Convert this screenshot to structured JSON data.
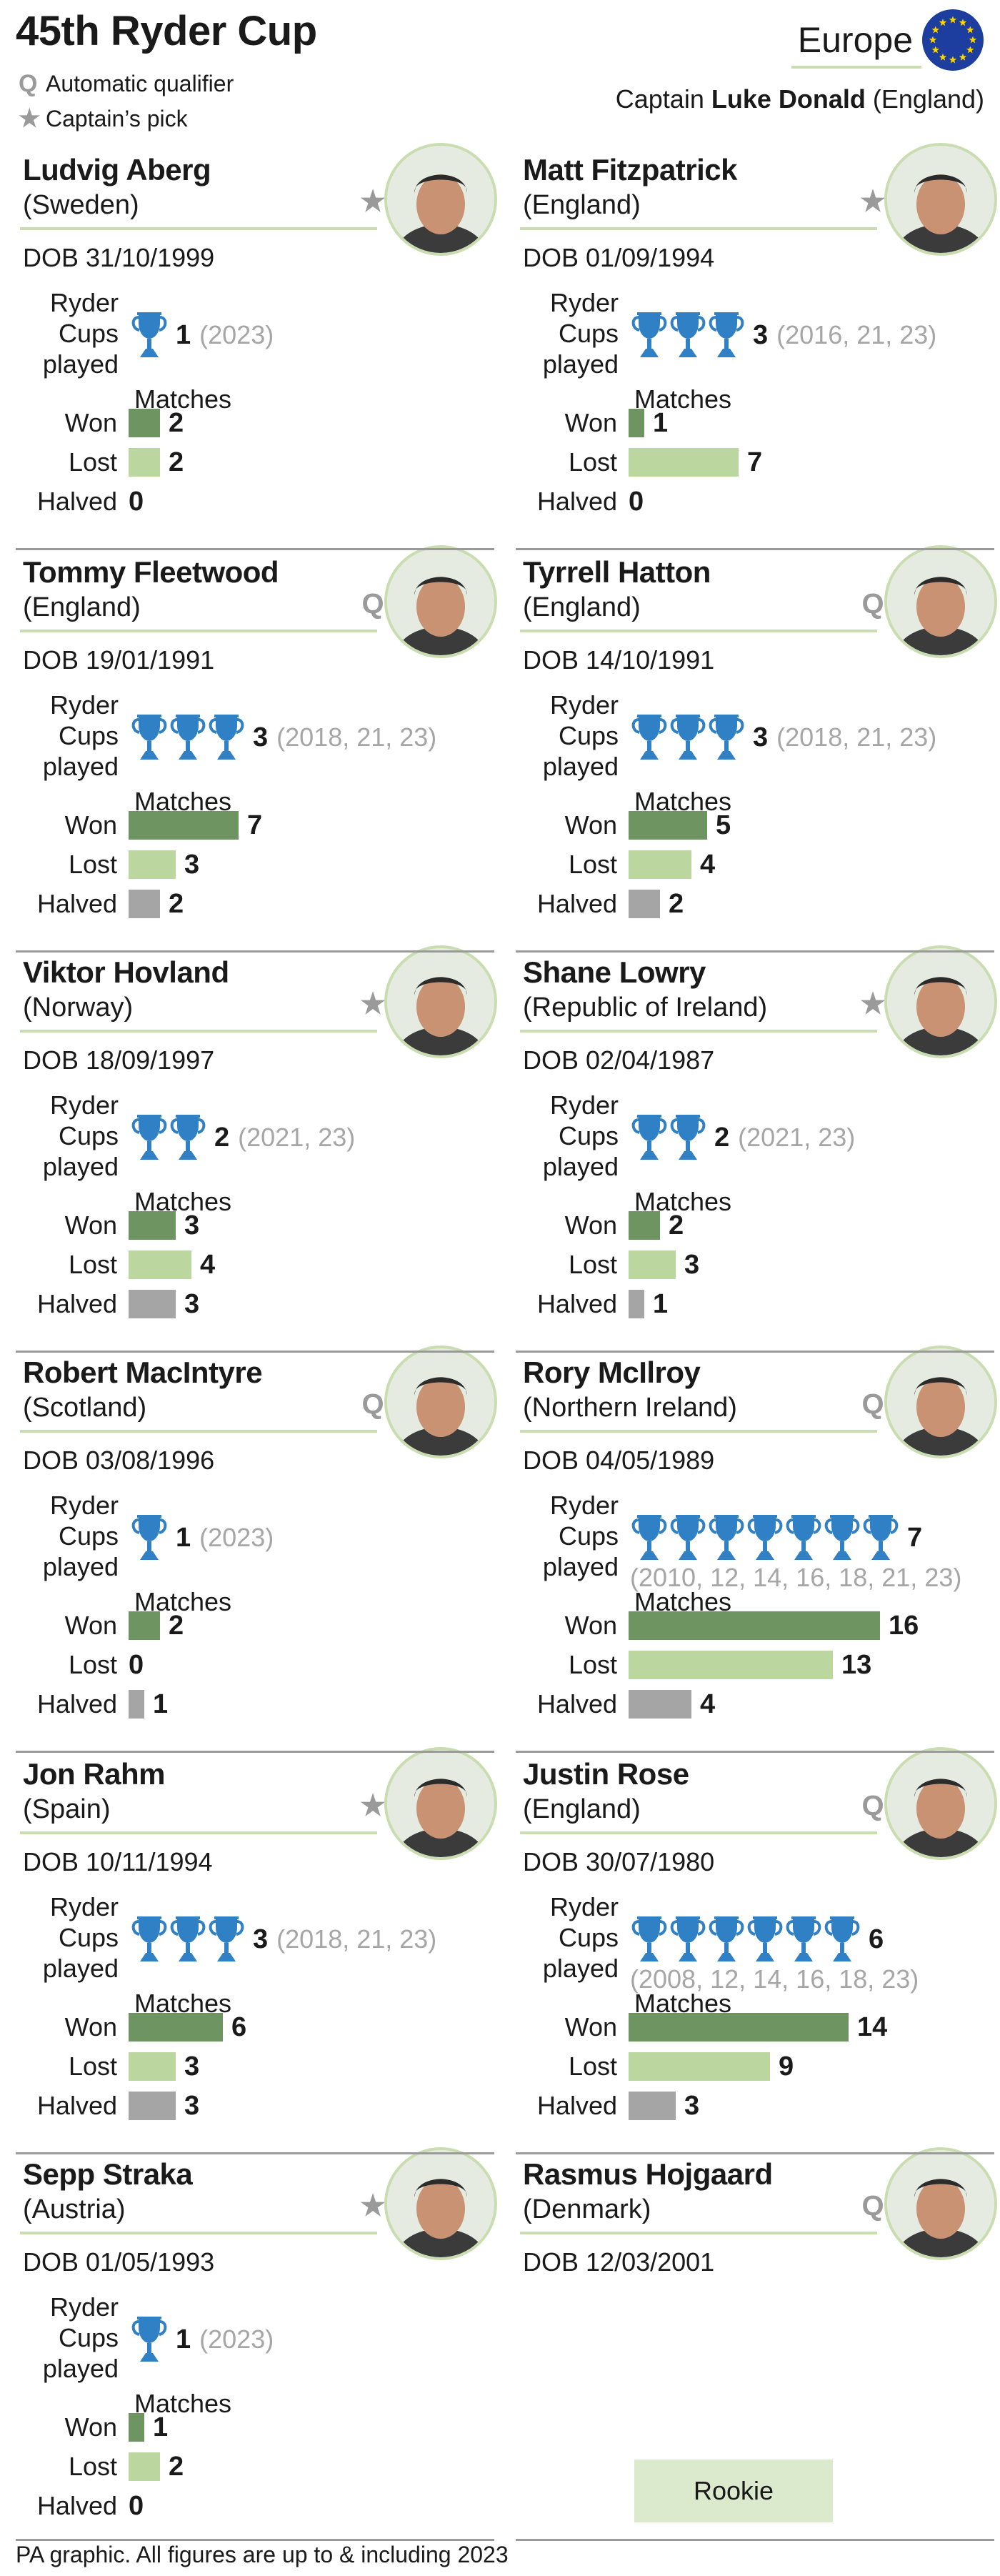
{
  "header": {
    "title": "45th Ryder Cup",
    "legend": [
      {
        "symbol": "Q",
        "label": "Automatic qualifier"
      },
      {
        "symbol": "★",
        "label": "Captain’s pick"
      }
    ],
    "team": "Europe",
    "captain_prefix": "Captain",
    "captain_name": "Luke Donald",
    "captain_country": "(England)"
  },
  "labels": {
    "dob_prefix": "DOB",
    "ryder_line1": "Ryder",
    "ryder_line2": "Cups",
    "ryder_line3": "played",
    "matches": "Matches",
    "won": "Won",
    "lost": "Lost",
    "halved": "Halved",
    "rookie": "Rookie"
  },
  "colors": {
    "won": "#6e9462",
    "lost": "#bcd6a0",
    "halved": "#a5a5a5",
    "trophy": "#2f80c4",
    "accent_line": "#c9ddb0",
    "flag_blue": "#1d3e9e",
    "flag_stars": "#ffd400"
  },
  "players": [
    {
      "name": "Ludvig Aberg",
      "country": "(Sweden)",
      "selection": "★",
      "dob": "31/10/1999",
      "cups": 1,
      "years": "(2023)",
      "won": 2,
      "lost": 2,
      "halved": 0
    },
    {
      "name": "Matt Fitzpatrick",
      "country": "(England)",
      "selection": "★",
      "dob": "01/09/1994",
      "cups": 3,
      "years": "(2016, 21, 23)",
      "won": 1,
      "lost": 7,
      "halved": 0
    },
    {
      "name": "Tommy Fleetwood",
      "country": "(England)",
      "selection": "Q",
      "dob": "19/01/1991",
      "cups": 3,
      "years": "(2018, 21, 23)",
      "won": 7,
      "lost": 3,
      "halved": 2
    },
    {
      "name": "Tyrrell Hatton",
      "country": "(England)",
      "selection": "Q",
      "dob": "14/10/1991",
      "cups": 3,
      "years": "(2018, 21, 23)",
      "won": 5,
      "lost": 4,
      "halved": 2
    },
    {
      "name": "Viktor Hovland",
      "country": "(Norway)",
      "selection": "★",
      "dob": "18/09/1997",
      "cups": 2,
      "years": "(2021, 23)",
      "won": 3,
      "lost": 4,
      "halved": 3
    },
    {
      "name": "Shane Lowry",
      "country": "(Republic of Ireland)",
      "selection": "★",
      "dob": "02/04/1987",
      "cups": 2,
      "years": "(2021, 23)",
      "won": 2,
      "lost": 3,
      "halved": 1
    },
    {
      "name": "Robert MacIntyre",
      "country": "(Scotland)",
      "selection": "Q",
      "dob": "03/08/1996",
      "cups": 1,
      "years": "(2023)",
      "won": 2,
      "lost": 0,
      "halved": 1
    },
    {
      "name": "Rory McIlroy",
      "country": "(Northern Ireland)",
      "selection": "Q",
      "dob": "04/05/1989",
      "cups": 7,
      "years": "(2010, 12, 14, 16, 18, 21, 23)",
      "won": 16,
      "lost": 13,
      "halved": 4
    },
    {
      "name": "Jon Rahm",
      "country": "(Spain)",
      "selection": "★",
      "dob": "10/11/1994",
      "cups": 3,
      "years": "(2018, 21, 23)",
      "won": 6,
      "lost": 3,
      "halved": 3
    },
    {
      "name": "Justin Rose",
      "country": "(England)",
      "selection": "Q",
      "dob": "30/07/1980",
      "cups": 6,
      "years": "(2008, 12, 14, 16, 18, 23)",
      "won": 14,
      "lost": 9,
      "halved": 3
    },
    {
      "name": "Sepp Straka",
      "country": "(Austria)",
      "selection": "★",
      "dob": "01/05/1993",
      "cups": 1,
      "years": "(2023)",
      "won": 1,
      "lost": 2,
      "halved": 0
    },
    {
      "name": "Rasmus Hojgaard",
      "country": "(Denmark)",
      "selection": "Q",
      "dob": "12/03/2001",
      "cups": 0,
      "years": "",
      "rookie": true
    }
  ],
  "footnote": "PA graphic. All figures are up to & including 2023"
}
